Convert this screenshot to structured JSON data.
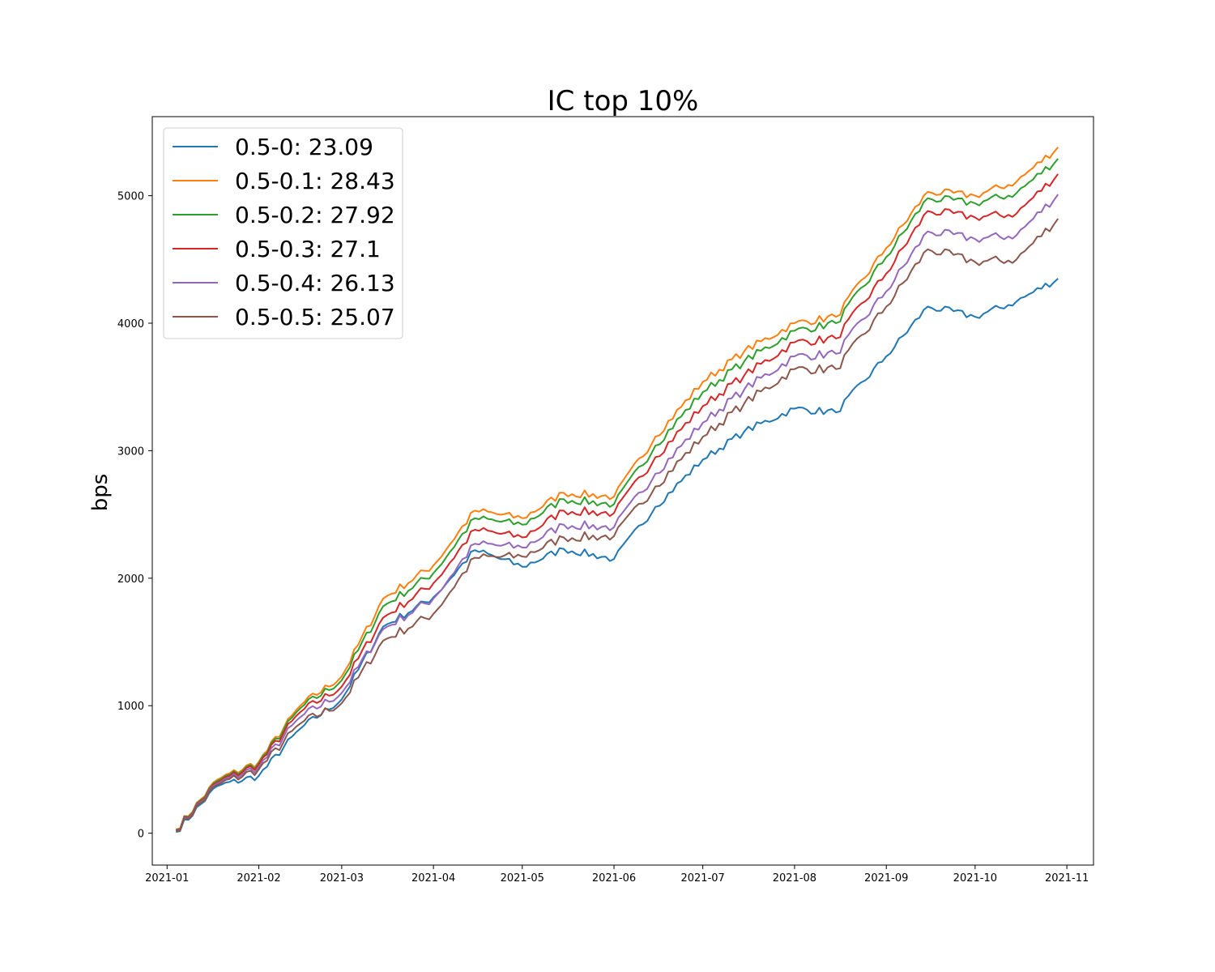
{
  "chart_data": {
    "type": "line",
    "title": "IC top 10%",
    "xlabel": "",
    "ylabel": "bps",
    "x_ticks": [
      "2021-01",
      "2021-02",
      "2021-03",
      "2021-04",
      "2021-05",
      "2021-06",
      "2021-07",
      "2021-08",
      "2021-09",
      "2021-10",
      "2021-11"
    ],
    "y_ticks": [
      0,
      1000,
      2000,
      3000,
      4000,
      5000
    ],
    "xlim": [
      "2020-12-27",
      "2021-11-10"
    ],
    "ylim": [
      -250,
      5620
    ],
    "grid": false,
    "legend_position": "upper left",
    "x": [
      "2021-01-04",
      "2021-01-18",
      "2021-02-01",
      "2021-02-15",
      "2021-03-01",
      "2021-03-15",
      "2021-04-01",
      "2021-04-15",
      "2021-05-01",
      "2021-05-15",
      "2021-06-01",
      "2021-06-15",
      "2021-07-01",
      "2021-07-15",
      "2021-08-01",
      "2021-08-15",
      "2021-09-01",
      "2021-09-15",
      "2021-10-01",
      "2021-10-15",
      "2021-10-29"
    ],
    "series": [
      {
        "name": "0.5-0: 23.09",
        "color": "#1f77b4",
        "values": [
          10,
          370,
          450,
          820,
          1050,
          1620,
          1850,
          2220,
          2090,
          2230,
          2150,
          2560,
          2930,
          3150,
          3330,
          3300,
          3740,
          4130,
          4050,
          4170,
          4350
        ]
      },
      {
        "name": "0.5-0.1: 28.43",
        "color": "#ff7f0e",
        "values": [
          30,
          420,
          560,
          1000,
          1230,
          1840,
          2100,
          2530,
          2470,
          2670,
          2640,
          3110,
          3540,
          3780,
          4000,
          4050,
          4590,
          5030,
          5000,
          5110,
          5380
        ]
      },
      {
        "name": "0.5-0.2: 27.92",
        "color": "#2ca02c",
        "values": [
          28,
          410,
          550,
          980,
          1200,
          1780,
          2040,
          2470,
          2420,
          2620,
          2580,
          3040,
          3460,
          3700,
          3940,
          4000,
          4520,
          4980,
          4940,
          5020,
          5290
        ]
      },
      {
        "name": "0.5-0.3: 27.1",
        "color": "#d62728",
        "values": [
          25,
          400,
          540,
          950,
          1150,
          1690,
          1960,
          2380,
          2320,
          2530,
          2510,
          2950,
          3350,
          3590,
          3850,
          3880,
          4390,
          4880,
          4830,
          4860,
          5170
        ]
      },
      {
        "name": "0.5-0.4: 26.13",
        "color": "#9467bd",
        "values": [
          22,
          390,
          520,
          910,
          1100,
          1600,
          1840,
          2270,
          2240,
          2420,
          2400,
          2820,
          3220,
          3480,
          3740,
          3760,
          4250,
          4720,
          4660,
          4690,
          5010
        ]
      },
      {
        "name": "0.5-0.5: 25.07",
        "color": "#8c564b",
        "values": [
          20,
          380,
          500,
          860,
          1020,
          1510,
          1720,
          2160,
          2170,
          2320,
          2330,
          2720,
          3110,
          3370,
          3640,
          3640,
          4130,
          4580,
          4480,
          4500,
          4820
        ]
      }
    ]
  }
}
